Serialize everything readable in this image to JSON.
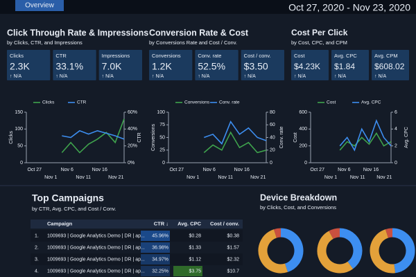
{
  "header": {
    "tab": "Overview",
    "date_range": "Oct 27, 2020 - Nov 23, 2020"
  },
  "panels": [
    {
      "title": "Click Through Rate & Impressions",
      "subtitle": "by Clicks, CTR, and Impressions",
      "kpis": [
        {
          "label": "Clicks",
          "value": "2.3K",
          "change": "↑ N/A"
        },
        {
          "label": "CTR",
          "value": "33.1%",
          "change": "↑ N/A"
        },
        {
          "label": "Impressions",
          "value": "7.0K",
          "change": "↑ N/A"
        }
      ],
      "chart": {
        "type": "line",
        "x_labels": [
          "Oct 27",
          "Nov 1",
          "Nov 6",
          "Nov 11",
          "Nov 16",
          "Nov 21"
        ],
        "series": [
          {
            "name": "Clicks",
            "color": "#3fa34d",
            "values": [
              null,
              null,
              null,
              null,
              30,
              60,
              30,
              55,
              70,
              90,
              60,
              130
            ]
          },
          {
            "name": "CTR",
            "color": "#3d8ef0",
            "axis": "y2",
            "values": [
              null,
              null,
              null,
              null,
              32,
              30,
              38,
              34,
              38,
              35,
              32,
              28
            ]
          }
        ],
        "ylim": [
          0,
          150
        ],
        "yticks": [
          0,
          50,
          100,
          150
        ],
        "y2lim": [
          0,
          60
        ],
        "y2ticks": [
          {
            "value": 0,
            "label": "0%"
          },
          {
            "value": 20,
            "label": "20%"
          },
          {
            "value": 40,
            "label": "40%"
          },
          {
            "value": 60,
            "label": "60%"
          }
        ]
      }
    },
    {
      "title": "Conversion Rate & Cost",
      "subtitle": "by Conversions Rate and Cost / Conv.",
      "kpis": [
        {
          "label": "Conversions",
          "value": "1.2K",
          "change": "↑ N/A"
        },
        {
          "label": "Conv. rate",
          "value": "52.5%",
          "change": "↑ N/A"
        },
        {
          "label": "Cost / conv.",
          "value": "$3.50",
          "change": "↑ N/A"
        }
      ],
      "chart": {
        "type": "line",
        "x_labels": [
          "Oct 27",
          "Nov 1",
          "Nov 6",
          "Nov 11",
          "Nov 16",
          "Nov 21"
        ],
        "series": [
          {
            "name": "Conversions",
            "color": "#3fa34d",
            "values": [
              null,
              null,
              null,
              null,
              20,
              35,
              25,
              60,
              30,
              40,
              20,
              25
            ]
          },
          {
            "name": "Conv. rate",
            "color": "#3d8ef0",
            "axis": "y2",
            "values": [
              null,
              null,
              null,
              null,
              40,
              45,
              30,
              65,
              45,
              55,
              40,
              35
            ]
          }
        ],
        "ylim": [
          0,
          100
        ],
        "yticks": [
          0,
          25,
          50,
          75,
          100
        ],
        "y2lim": [
          0,
          80
        ],
        "y2ticks": [
          0,
          20,
          40,
          60,
          80
        ]
      }
    },
    {
      "title": "Cost Per Click",
      "subtitle": "by Cost, CPC, and CPM",
      "kpis": [
        {
          "label": "Cost",
          "value": "$4.23K",
          "change": "↑ N/A"
        },
        {
          "label": "Avg. CPC",
          "value": "$1.84",
          "change": "↑ N/A"
        },
        {
          "label": "Avg. CPM",
          "value": "$608.02",
          "change": "↑ N/A"
        }
      ],
      "chart": {
        "type": "line",
        "x_labels": [
          "Oct 27",
          "Nov 1",
          "Nov 6",
          "Nov 11",
          "Nov 16",
          "Nov 21"
        ],
        "series": [
          {
            "name": "Cost",
            "color": "#3fa34d",
            "values": [
              null,
              null,
              null,
              null,
              150,
              250,
              200,
              300,
              220,
              350,
              200,
              250
            ]
          },
          {
            "name": "Avg. CPC",
            "color": "#3d8ef0",
            "axis": "y2",
            "values": [
              null,
              null,
              null,
              null,
              2,
              3,
              1.5,
              4,
              2.5,
              5,
              3,
              2
            ]
          }
        ],
        "ylim": [
          0,
          600
        ],
        "yticks": [
          0,
          200,
          400,
          600
        ],
        "y2lim": [
          0,
          6
        ],
        "y2ticks": [
          0,
          2,
          4,
          6
        ]
      }
    }
  ],
  "campaigns": {
    "title": "Top Campaigns",
    "subtitle": "by CTR, Avg. CPC, and Cost / Conv.",
    "columns": [
      "Campaign",
      "CTR ↓",
      "Avg. CPC",
      "Cost / conv."
    ],
    "rows": [
      [
        "1.",
        "1009693 | Google Analytics Demo | DR | ap...",
        "45.96%",
        "$0.28",
        "$0.38"
      ],
      [
        "2.",
        "1009693 | Google Analytics Demo | DR | ap...",
        "36.98%",
        "$1.33",
        "$1.57"
      ],
      [
        "3.",
        "1009693 | Google Analytics Demo | DR | ap...",
        "34.97%",
        "$1.12",
        "$2.32"
      ],
      [
        "4.",
        "1009693 | Google Analytics Demo | DR | ap...",
        "32.25%",
        "$3.75",
        "$10.7"
      ]
    ]
  },
  "devices": {
    "title": "Device Breakdown",
    "subtitle": "by Clicks, Cost, and Conversions",
    "donuts": [
      {
        "type": "pie",
        "values": [
          45,
          50,
          5
        ],
        "colors": [
          "#3d8ef0",
          "#e3a13a",
          "#c9503f"
        ]
      },
      {
        "type": "pie",
        "values": [
          40,
          52,
          8
        ],
        "colors": [
          "#3d8ef0",
          "#e3a13a",
          "#c9503f"
        ]
      },
      {
        "type": "pie",
        "values": [
          48,
          47,
          5
        ],
        "colors": [
          "#3d8ef0",
          "#e3a13a",
          "#c9503f"
        ]
      }
    ]
  }
}
